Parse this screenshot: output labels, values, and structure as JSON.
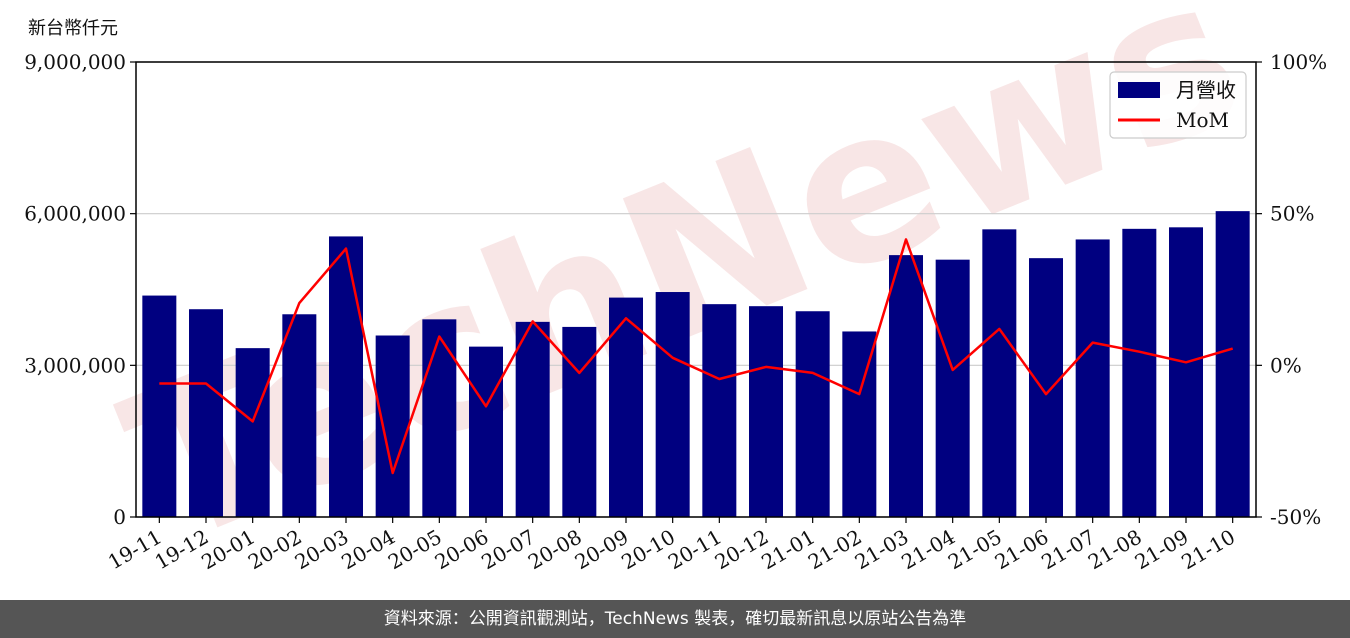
{
  "unit_label": "新台幣仟元",
  "footer_text": "資料來源：公開資訊觀測站，TechNews 製表，確切最新訊息以原站公告為準",
  "watermark_text": "TechNews",
  "colors": {
    "bar": "#000080",
    "line": "#ff0000",
    "grid": "#cccccc",
    "footer_bg": "#555555"
  },
  "chart_data": {
    "type": "bar",
    "categories": [
      "19-11",
      "19-12",
      "20-01",
      "20-02",
      "20-03",
      "20-04",
      "20-05",
      "20-06",
      "20-07",
      "20-08",
      "20-09",
      "20-10",
      "20-11",
      "20-12",
      "21-01",
      "21-02",
      "21-03",
      "21-04",
      "21-05",
      "21-06",
      "21-07",
      "21-08",
      "21-09",
      "21-10"
    ],
    "series": [
      {
        "name": "月營收",
        "type": "bar",
        "axis": "left",
        "values": [
          4380000,
          4110000,
          3340000,
          4010000,
          5550000,
          3590000,
          3910000,
          3370000,
          3860000,
          3760000,
          4340000,
          4450000,
          4210000,
          4170000,
          4070000,
          3670000,
          5180000,
          5090000,
          5690000,
          5120000,
          5490000,
          5700000,
          5730000,
          6050000
        ]
      },
      {
        "name": "MoM",
        "type": "line",
        "axis": "right",
        "values": [
          -6.0,
          -6.0,
          -18.5,
          20.5,
          38.5,
          -35.5,
          9.5,
          -13.5,
          14.5,
          -2.5,
          15.5,
          2.5,
          -4.5,
          -0.5,
          -2.5,
          -9.5,
          41.5,
          -1.5,
          12.0,
          -9.5,
          7.5,
          4.5,
          1.0,
          5.5
        ]
      }
    ],
    "yticks_left": [
      "0",
      "3,000,000",
      "6,000,000",
      "9,000,000"
    ],
    "yticks_right": [
      "-50%",
      "0%",
      "50%",
      "100%"
    ],
    "ylim_left": [
      0,
      9000000
    ],
    "ylim_right": [
      -50,
      100
    ],
    "grid": "horizontal",
    "legend_position": "top-right"
  }
}
